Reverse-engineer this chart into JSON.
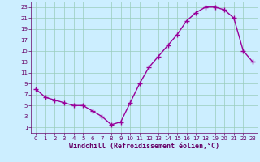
{
  "x": [
    0,
    1,
    2,
    3,
    4,
    5,
    6,
    7,
    8,
    9,
    10,
    11,
    12,
    13,
    14,
    15,
    16,
    17,
    18,
    19,
    20,
    21,
    22,
    23
  ],
  "y": [
    8,
    6.5,
    6,
    5.5,
    5,
    5,
    4,
    3,
    1.5,
    2,
    5.5,
    9,
    12,
    14,
    16,
    18,
    20.5,
    22,
    23,
    23,
    22.5,
    21,
    15,
    13
  ],
  "line_color": "#990099",
  "marker": "+",
  "marker_size": 4,
  "marker_lw": 1.0,
  "bg_color": "#cceeff",
  "grid_color": "#99ccbb",
  "xlabel": "Windchill (Refroidissement éolien,°C)",
  "xlabel_fontsize": 6.0,
  "xlabel_color": "#660066",
  "tick_color": "#660066",
  "tick_fontsize": 5.0,
  "ylim": [
    0,
    24
  ],
  "xlim": [
    -0.5,
    23.5
  ],
  "yticks": [
    1,
    3,
    5,
    7,
    9,
    11,
    13,
    15,
    17,
    19,
    21,
    23
  ],
  "xticks": [
    0,
    1,
    2,
    3,
    4,
    5,
    6,
    7,
    8,
    9,
    10,
    11,
    12,
    13,
    14,
    15,
    16,
    17,
    18,
    19,
    20,
    21,
    22,
    23
  ],
  "line_width": 1.0
}
